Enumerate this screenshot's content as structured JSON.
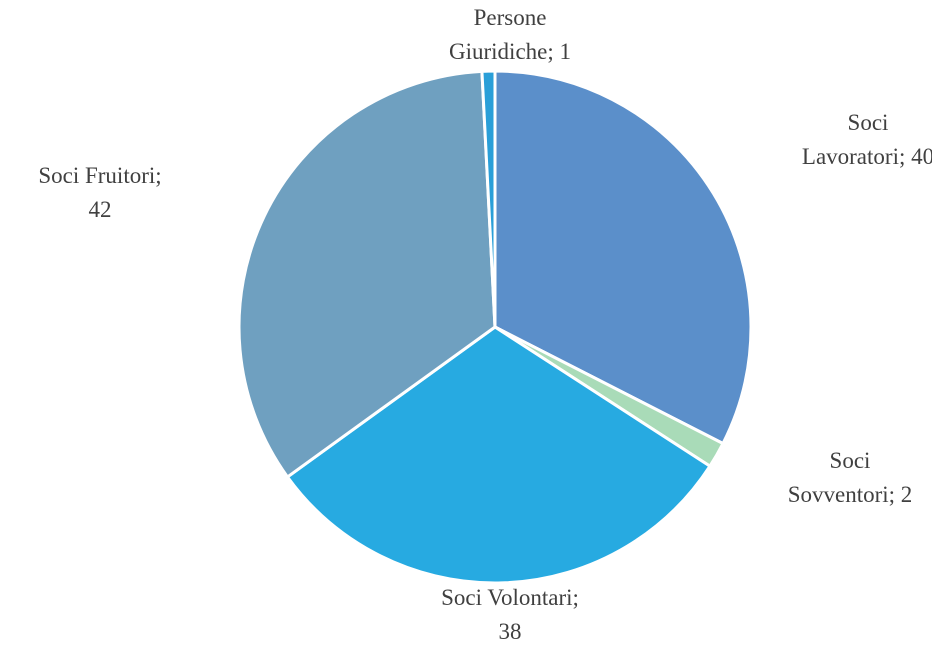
{
  "chart_data": {
    "type": "pie",
    "categories": [
      "Soci Lavoratori",
      "Soci Sovventori",
      "Soci Volontari",
      "Soci Fruitori",
      "Persone Giuridiche"
    ],
    "values": [
      40,
      2,
      38,
      42,
      1
    ],
    "value_labels": [
      "Soci\nLavoratori; 40",
      "Soci\nSovventori; 2",
      "Soci Volontari;\n38",
      "Soci Fruitori;\n42",
      "Persone\nGiuridiche; 1"
    ],
    "colors": [
      "#5b8fca",
      "#a9dbb8",
      "#27aae1",
      "#6fa0c0",
      "#2a9fd8"
    ]
  }
}
